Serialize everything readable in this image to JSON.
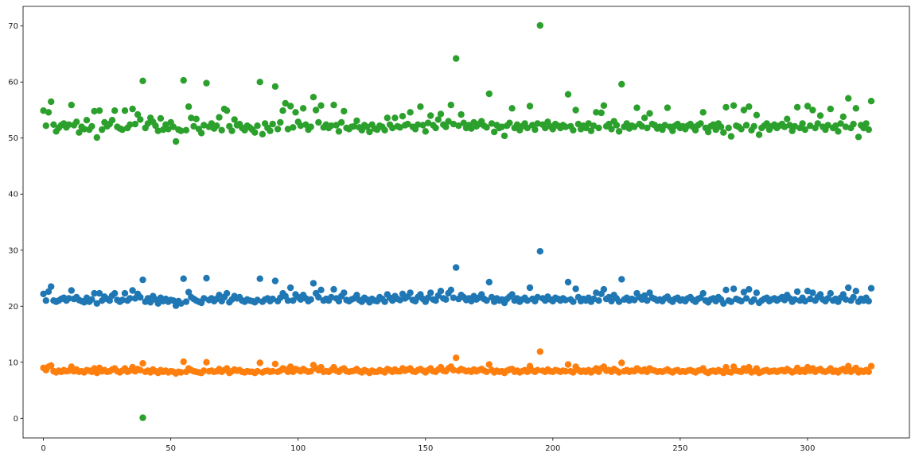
{
  "chart_data": {
    "type": "scatter",
    "title": "",
    "xlabel": "",
    "ylabel": "",
    "xlim": [
      -8,
      340
    ],
    "ylim": [
      -3.5,
      73.5
    ],
    "x_ticks": [
      0,
      50,
      100,
      150,
      200,
      250,
      300
    ],
    "y_ticks": [
      0,
      10,
      20,
      30,
      40,
      50,
      60,
      70
    ],
    "grid": false,
    "legend": "none",
    "x": [
      0,
      1,
      2,
      3,
      4,
      5,
      6,
      7,
      8,
      9,
      10,
      11,
      12,
      13,
      14,
      15,
      16,
      17,
      18,
      19,
      20,
      21,
      22,
      23,
      24,
      25,
      26,
      27,
      28,
      29,
      30,
      31,
      32,
      33,
      34,
      35,
      36,
      37,
      38,
      39,
      40,
      41,
      42,
      43,
      44,
      45,
      46,
      47,
      48,
      49,
      50,
      51,
      52,
      53,
      54,
      55,
      56,
      57,
      58,
      59,
      60,
      61,
      62,
      63,
      64,
      65,
      66,
      67,
      68,
      69,
      70,
      71,
      72,
      73,
      74,
      75,
      76,
      77,
      78,
      79,
      80,
      81,
      82,
      83,
      84,
      85,
      86,
      87,
      88,
      89,
      90,
      91,
      92,
      93,
      94,
      95,
      96,
      97,
      98,
      99,
      100,
      101,
      102,
      103,
      104,
      105,
      106,
      107,
      108,
      109,
      110,
      111,
      112,
      113,
      114,
      115,
      116,
      117,
      118,
      119,
      120,
      121,
      122,
      123,
      124,
      125,
      126,
      127,
      128,
      129,
      130,
      131,
      132,
      133,
      134,
      135,
      136,
      137,
      138,
      139,
      140,
      141,
      142,
      143,
      144,
      145,
      146,
      147,
      148,
      149,
      150,
      151,
      152,
      153,
      154,
      155,
      156,
      157,
      158,
      159,
      160,
      161,
      162,
      163,
      164,
      165,
      166,
      167,
      168,
      169,
      170,
      171,
      172,
      173,
      174,
      175,
      176,
      177,
      178,
      179,
      180,
      181,
      182,
      183,
      184,
      185,
      186,
      187,
      188,
      189,
      190,
      191,
      192,
      193,
      194,
      195,
      196,
      197,
      198,
      199,
      200,
      201,
      202,
      203,
      204,
      205,
      206,
      207,
      208,
      209,
      210,
      211,
      212,
      213,
      214,
      215,
      216,
      217,
      218,
      219,
      220,
      221,
      222,
      223,
      224,
      225,
      226,
      227,
      228,
      229,
      230,
      231,
      232,
      233,
      234,
      235,
      236,
      237,
      238,
      239,
      240,
      241,
      242,
      243,
      244,
      245,
      246,
      247,
      248,
      249,
      250,
      251,
      252,
      253,
      254,
      255,
      256,
      257,
      258,
      259,
      260,
      261,
      262,
      263,
      264,
      265,
      266,
      267,
      268,
      269,
      270,
      271,
      272,
      273,
      274,
      275,
      276,
      277,
      278,
      279,
      280,
      281,
      282,
      283,
      284,
      285,
      286,
      287,
      288,
      289,
      290,
      291,
      292,
      293,
      294,
      295,
      296,
      297,
      298,
      299,
      300,
      301,
      302,
      303,
      304,
      305,
      306,
      307,
      308,
      309,
      310,
      311,
      312,
      313,
      314,
      315,
      316,
      317,
      318,
      319,
      320,
      321,
      322,
      323,
      324,
      325
    ],
    "series": [
      {
        "color": "#1f77b4",
        "values": [
          22.2,
          21.0,
          22.6,
          23.5,
          21.0,
          20.8,
          21.0,
          21.3,
          21.5,
          21.0,
          21.4,
          22.8,
          21.3,
          21.6,
          21.1,
          20.9,
          20.7,
          21.5,
          20.8,
          21.2,
          22.3,
          20.5,
          22.3,
          21.0,
          21.7,
          21.3,
          21.0,
          21.9,
          22.3,
          21.1,
          20.8,
          21.1,
          22.3,
          21.0,
          21.4,
          22.8,
          21.4,
          22.2,
          21.6,
          24.7,
          20.8,
          21.4,
          20.7,
          21.8,
          21.2,
          20.5,
          21.5,
          20.9,
          21.3,
          20.8,
          21.1,
          21.0,
          20.1,
          20.9,
          20.5,
          24.9,
          20.8,
          22.5,
          21.6,
          21.3,
          21.0,
          20.8,
          20.6,
          21.4,
          25.0,
          21.1,
          21.4,
          20.9,
          21.3,
          22.0,
          20.9,
          21.6,
          22.3,
          20.7,
          21.2,
          21.8,
          21.4,
          21.6,
          21.0,
          20.8,
          21.2,
          21.0,
          20.9,
          20.7,
          21.1,
          24.9,
          20.8,
          21.2,
          21.4,
          20.9,
          21.3,
          24.5,
          20.9,
          21.5,
          22.3,
          21.8,
          21.0,
          23.3,
          21.0,
          22.1,
          21.6,
          21.2,
          22.0,
          21.4,
          20.9,
          21.2,
          24.1,
          22.3,
          21.6,
          22.9,
          21.0,
          21.3,
          21.0,
          21.6,
          23.0,
          21.4,
          20.9,
          21.8,
          22.4,
          21.1,
          20.9,
          21.2,
          21.4,
          22.0,
          21.1,
          20.8,
          21.5,
          21.2,
          20.7,
          21.3,
          21.0,
          20.9,
          21.6,
          21.3,
          20.8,
          22.1,
          21.5,
          21.0,
          21.8,
          21.3,
          21.1,
          22.2,
          21.4,
          21.7,
          22.4,
          21.1,
          20.9,
          21.6,
          22.1,
          21.3,
          20.8,
          21.5,
          22.4,
          21.2,
          21.0,
          21.9,
          22.7,
          21.4,
          21.2,
          22.3,
          22.9,
          21.5,
          26.9,
          21.3,
          22.0,
          21.6,
          21.1,
          21.4,
          20.9,
          21.8,
          21.2,
          21.5,
          22.1,
          21.3,
          21.0,
          24.3,
          21.6,
          20.8,
          21.4,
          21.0,
          21.2,
          20.6,
          21.3,
          21.7,
          22.1,
          21.0,
          21.4,
          20.8,
          21.2,
          21.5,
          21.0,
          23.3,
          21.3,
          20.9,
          21.6,
          29.8,
          21.4,
          21.0,
          21.7,
          21.2,
          20.9,
          21.5,
          21.3,
          21.0,
          21.4,
          21.1,
          24.3,
          21.2,
          20.8,
          23.1,
          21.6,
          20.9,
          21.3,
          21.0,
          21.5,
          20.8,
          21.3,
          22.4,
          21.0,
          22.2,
          23.0,
          21.3,
          21.6,
          20.9,
          22.0,
          21.4,
          20.8,
          24.8,
          21.2,
          21.5,
          21.0,
          21.3,
          21.1,
          22.3,
          21.6,
          21.2,
          21.9,
          21.0,
          22.4,
          21.5,
          21.3,
          21.0,
          21.2,
          20.9,
          21.4,
          21.7,
          21.1,
          20.8,
          21.3,
          21.5,
          21.0,
          21.2,
          20.9,
          21.4,
          21.6,
          21.1,
          20.8,
          21.3,
          21.5,
          22.3,
          21.0,
          20.7,
          21.2,
          21.4,
          20.9,
          21.6,
          21.2,
          20.5,
          22.9,
          21.0,
          20.8,
          23.1,
          21.3,
          21.1,
          20.9,
          22.5,
          21.4,
          23.0,
          20.8,
          21.2,
          22.4,
          20.6,
          21.0,
          21.3,
          21.5,
          20.9,
          21.2,
          21.4,
          21.0,
          21.3,
          21.6,
          21.1,
          22.0,
          21.4,
          20.8,
          21.2,
          22.6,
          21.0,
          21.5,
          20.9,
          22.7,
          21.3,
          22.4,
          21.0,
          21.6,
          22.1,
          21.2,
          20.9,
          21.4,
          22.3,
          21.0,
          21.3,
          20.8,
          21.5,
          22.1,
          21.2,
          23.3,
          21.0,
          21.6,
          22.7,
          20.8,
          21.3,
          21.0,
          21.5,
          20.9,
          23.2
        ]
      },
      {
        "color": "#ff7f0e",
        "values": [
          9.0,
          8.6,
          9.2,
          9.4,
          8.4,
          8.2,
          8.5,
          8.3,
          8.6,
          8.4,
          8.5,
          9.2,
          8.4,
          8.7,
          8.3,
          8.4,
          8.2,
          8.6,
          8.5,
          8.3,
          8.9,
          8.1,
          9.0,
          8.4,
          8.6,
          8.3,
          8.4,
          8.7,
          8.9,
          8.4,
          8.2,
          8.5,
          8.9,
          8.3,
          8.5,
          9.1,
          8.4,
          8.8,
          8.6,
          9.8,
          8.3,
          8.5,
          8.2,
          8.7,
          8.4,
          8.1,
          8.6,
          8.3,
          8.5,
          8.2,
          8.4,
          8.3,
          8.0,
          8.3,
          8.2,
          10.1,
          8.3,
          8.9,
          8.6,
          8.4,
          8.3,
          8.2,
          8.1,
          8.5,
          10.0,
          8.4,
          8.5,
          8.3,
          8.4,
          8.8,
          8.3,
          8.6,
          8.9,
          8.1,
          8.4,
          8.7,
          8.5,
          8.6,
          8.3,
          8.2,
          8.4,
          8.3,
          8.3,
          8.1,
          8.4,
          9.9,
          8.2,
          8.4,
          8.5,
          8.3,
          8.4,
          9.7,
          8.3,
          8.5,
          8.9,
          8.7,
          8.3,
          9.2,
          8.3,
          8.8,
          8.6,
          8.4,
          8.8,
          8.5,
          8.3,
          8.4,
          9.5,
          8.9,
          8.6,
          9.1,
          8.3,
          8.4,
          8.3,
          8.6,
          9.1,
          8.5,
          8.3,
          8.7,
          8.9,
          8.4,
          8.3,
          8.4,
          8.5,
          8.8,
          8.4,
          8.2,
          8.6,
          8.4,
          8.1,
          8.5,
          8.3,
          8.3,
          8.6,
          8.4,
          8.2,
          8.8,
          8.6,
          8.3,
          8.7,
          8.4,
          8.4,
          8.9,
          8.5,
          8.7,
          8.9,
          8.4,
          8.3,
          8.6,
          8.8,
          8.5,
          8.2,
          8.6,
          8.9,
          8.4,
          8.3,
          8.7,
          9.1,
          8.5,
          8.4,
          8.9,
          9.2,
          8.6,
          10.8,
          8.5,
          8.8,
          8.6,
          8.4,
          8.5,
          8.3,
          8.7,
          8.4,
          8.6,
          8.8,
          8.5,
          8.3,
          9.6,
          8.6,
          8.2,
          8.5,
          8.3,
          8.4,
          8.1,
          8.5,
          8.7,
          8.8,
          8.3,
          8.5,
          8.2,
          8.4,
          8.6,
          8.3,
          9.3,
          8.5,
          8.3,
          8.6,
          11.9,
          8.5,
          8.3,
          8.7,
          8.4,
          8.3,
          8.6,
          8.5,
          8.3,
          8.5,
          8.4,
          9.6,
          8.4,
          8.2,
          9.2,
          8.6,
          8.3,
          8.5,
          8.3,
          8.6,
          8.2,
          8.5,
          8.9,
          8.3,
          8.9,
          9.2,
          8.5,
          8.6,
          8.3,
          8.8,
          8.5,
          8.2,
          9.9,
          8.4,
          8.6,
          8.3,
          8.5,
          8.4,
          8.9,
          8.6,
          8.4,
          8.7,
          8.3,
          8.9,
          8.6,
          8.5,
          8.3,
          8.4,
          8.3,
          8.5,
          8.7,
          8.4,
          8.2,
          8.5,
          8.6,
          8.3,
          8.4,
          8.3,
          8.5,
          8.6,
          8.4,
          8.2,
          8.5,
          8.6,
          8.9,
          8.3,
          8.1,
          8.4,
          8.5,
          8.3,
          8.6,
          8.4,
          8.1,
          9.1,
          8.3,
          8.2,
          9.2,
          8.5,
          8.4,
          8.3,
          8.9,
          8.5,
          9.1,
          8.2,
          8.4,
          8.9,
          8.1,
          8.3,
          8.5,
          8.6,
          8.3,
          8.4,
          8.5,
          8.3,
          8.5,
          8.6,
          8.4,
          8.8,
          8.5,
          8.2,
          8.4,
          9.0,
          8.3,
          8.6,
          8.3,
          9.1,
          8.5,
          8.9,
          8.3,
          8.6,
          8.8,
          8.4,
          8.3,
          8.5,
          8.9,
          8.3,
          8.5,
          8.2,
          8.6,
          8.8,
          8.4,
          9.3,
          8.3,
          8.6,
          9.0,
          8.2,
          8.5,
          8.3,
          8.6,
          8.3,
          9.3
        ]
      },
      {
        "color": "#2ca02c",
        "values": [
          54.9,
          52.2,
          54.6,
          56.5,
          52.4,
          51.2,
          51.8,
          52.3,
          52.6,
          51.9,
          52.4,
          55.9,
          52.3,
          52.9,
          51.0,
          52.0,
          51.6,
          53.2,
          51.5,
          52.1,
          54.8,
          50.1,
          54.9,
          51.5,
          52.8,
          52.1,
          52.5,
          53.2,
          54.9,
          52.0,
          51.7,
          51.5,
          54.9,
          51.8,
          52.4,
          55.2,
          52.5,
          54.2,
          53.3,
          60.2,
          51.8,
          52.6,
          53.6,
          52.9,
          52.2,
          51.3,
          53.5,
          51.5,
          52.4,
          51.6,
          52.8,
          52.0,
          49.4,
          51.5,
          51.3,
          60.3,
          51.4,
          55.6,
          53.6,
          52.1,
          53.4,
          51.6,
          50.9,
          52.3,
          59.8,
          52.0,
          52.6,
          51.7,
          52.2,
          53.7,
          51.4,
          55.2,
          54.9,
          52.1,
          51.3,
          53.3,
          52.3,
          52.5,
          51.8,
          51.4,
          52.2,
          51.9,
          51.5,
          51.0,
          52.2,
          60.0,
          50.7,
          52.6,
          51.8,
          51.3,
          52.5,
          59.2,
          51.6,
          52.8,
          54.9,
          56.2,
          51.6,
          55.7,
          51.9,
          54.6,
          52.9,
          52.2,
          55.3,
          52.4,
          51.5,
          52.0,
          57.3,
          55.0,
          52.8,
          55.8,
          51.9,
          52.4,
          51.8,
          52.2,
          55.9,
          52.3,
          51.2,
          52.8,
          54.8,
          51.8,
          51.6,
          52.0,
          52.1,
          53.1,
          51.9,
          51.4,
          52.3,
          52.0,
          51.1,
          52.4,
          51.7,
          51.5,
          52.2,
          52.0,
          51.4,
          53.6,
          52.4,
          51.8,
          53.6,
          52.1,
          51.9,
          53.9,
          52.3,
          52.5,
          54.6,
          52.0,
          51.6,
          52.4,
          55.6,
          52.3,
          51.2,
          52.7,
          54.0,
          52.3,
          51.8,
          53.3,
          54.3,
          52.4,
          52.0,
          53.0,
          55.9,
          52.5,
          64.2,
          52.2,
          54.2,
          52.7,
          51.8,
          52.3,
          51.7,
          52.8,
          52.1,
          52.5,
          53.0,
          52.2,
          51.9,
          57.9,
          52.6,
          51.1,
          52.3,
          51.8,
          52.0,
          50.4,
          52.2,
          52.7,
          55.3,
          51.8,
          52.4,
          51.4,
          52.1,
          52.6,
          51.8,
          55.7,
          52.3,
          51.5,
          52.6,
          70.1,
          52.4,
          51.8,
          52.9,
          52.1,
          51.6,
          52.5,
          52.2,
          51.8,
          52.3,
          52.0,
          57.8,
          52.1,
          51.4,
          55.0,
          52.5,
          51.6,
          52.2,
          51.8,
          52.6,
          51.3,
          52.2,
          54.6,
          51.8,
          54.5,
          55.8,
          52.1,
          52.5,
          51.6,
          53.0,
          52.3,
          51.2,
          59.6,
          52.0,
          52.6,
          51.7,
          52.2,
          52.0,
          55.4,
          52.5,
          52.1,
          53.6,
          51.8,
          54.4,
          52.5,
          52.3,
          51.7,
          52.0,
          51.5,
          52.3,
          55.4,
          52.0,
          51.3,
          52.2,
          52.5,
          51.8,
          52.1,
          51.6,
          52.2,
          52.5,
          52.0,
          51.4,
          52.3,
          52.6,
          54.6,
          51.8,
          51.1,
          52.1,
          52.4,
          51.5,
          52.6,
          52.0,
          51.0,
          55.5,
          51.8,
          50.3,
          55.8,
          52.2,
          52.0,
          51.6,
          55.0,
          52.3,
          55.6,
          51.4,
          52.1,
          54.1,
          50.6,
          51.8,
          52.2,
          52.6,
          51.5,
          52.1,
          52.4,
          51.8,
          52.2,
          52.5,
          52.0,
          53.4,
          52.3,
          51.3,
          52.1,
          55.5,
          51.8,
          52.6,
          51.5,
          55.7,
          52.2,
          55.0,
          51.8,
          52.6,
          54.0,
          52.0,
          51.5,
          52.3,
          55.2,
          51.8,
          52.2,
          51.2,
          52.6,
          53.8,
          52.0,
          57.1,
          51.8,
          52.5,
          55.3,
          50.2,
          52.3,
          51.8,
          52.6,
          51.5,
          56.6
        ]
      }
    ],
    "outliers": [
      {
        "x": 39,
        "y": 0.1,
        "color": "#2ca02c"
      }
    ]
  }
}
